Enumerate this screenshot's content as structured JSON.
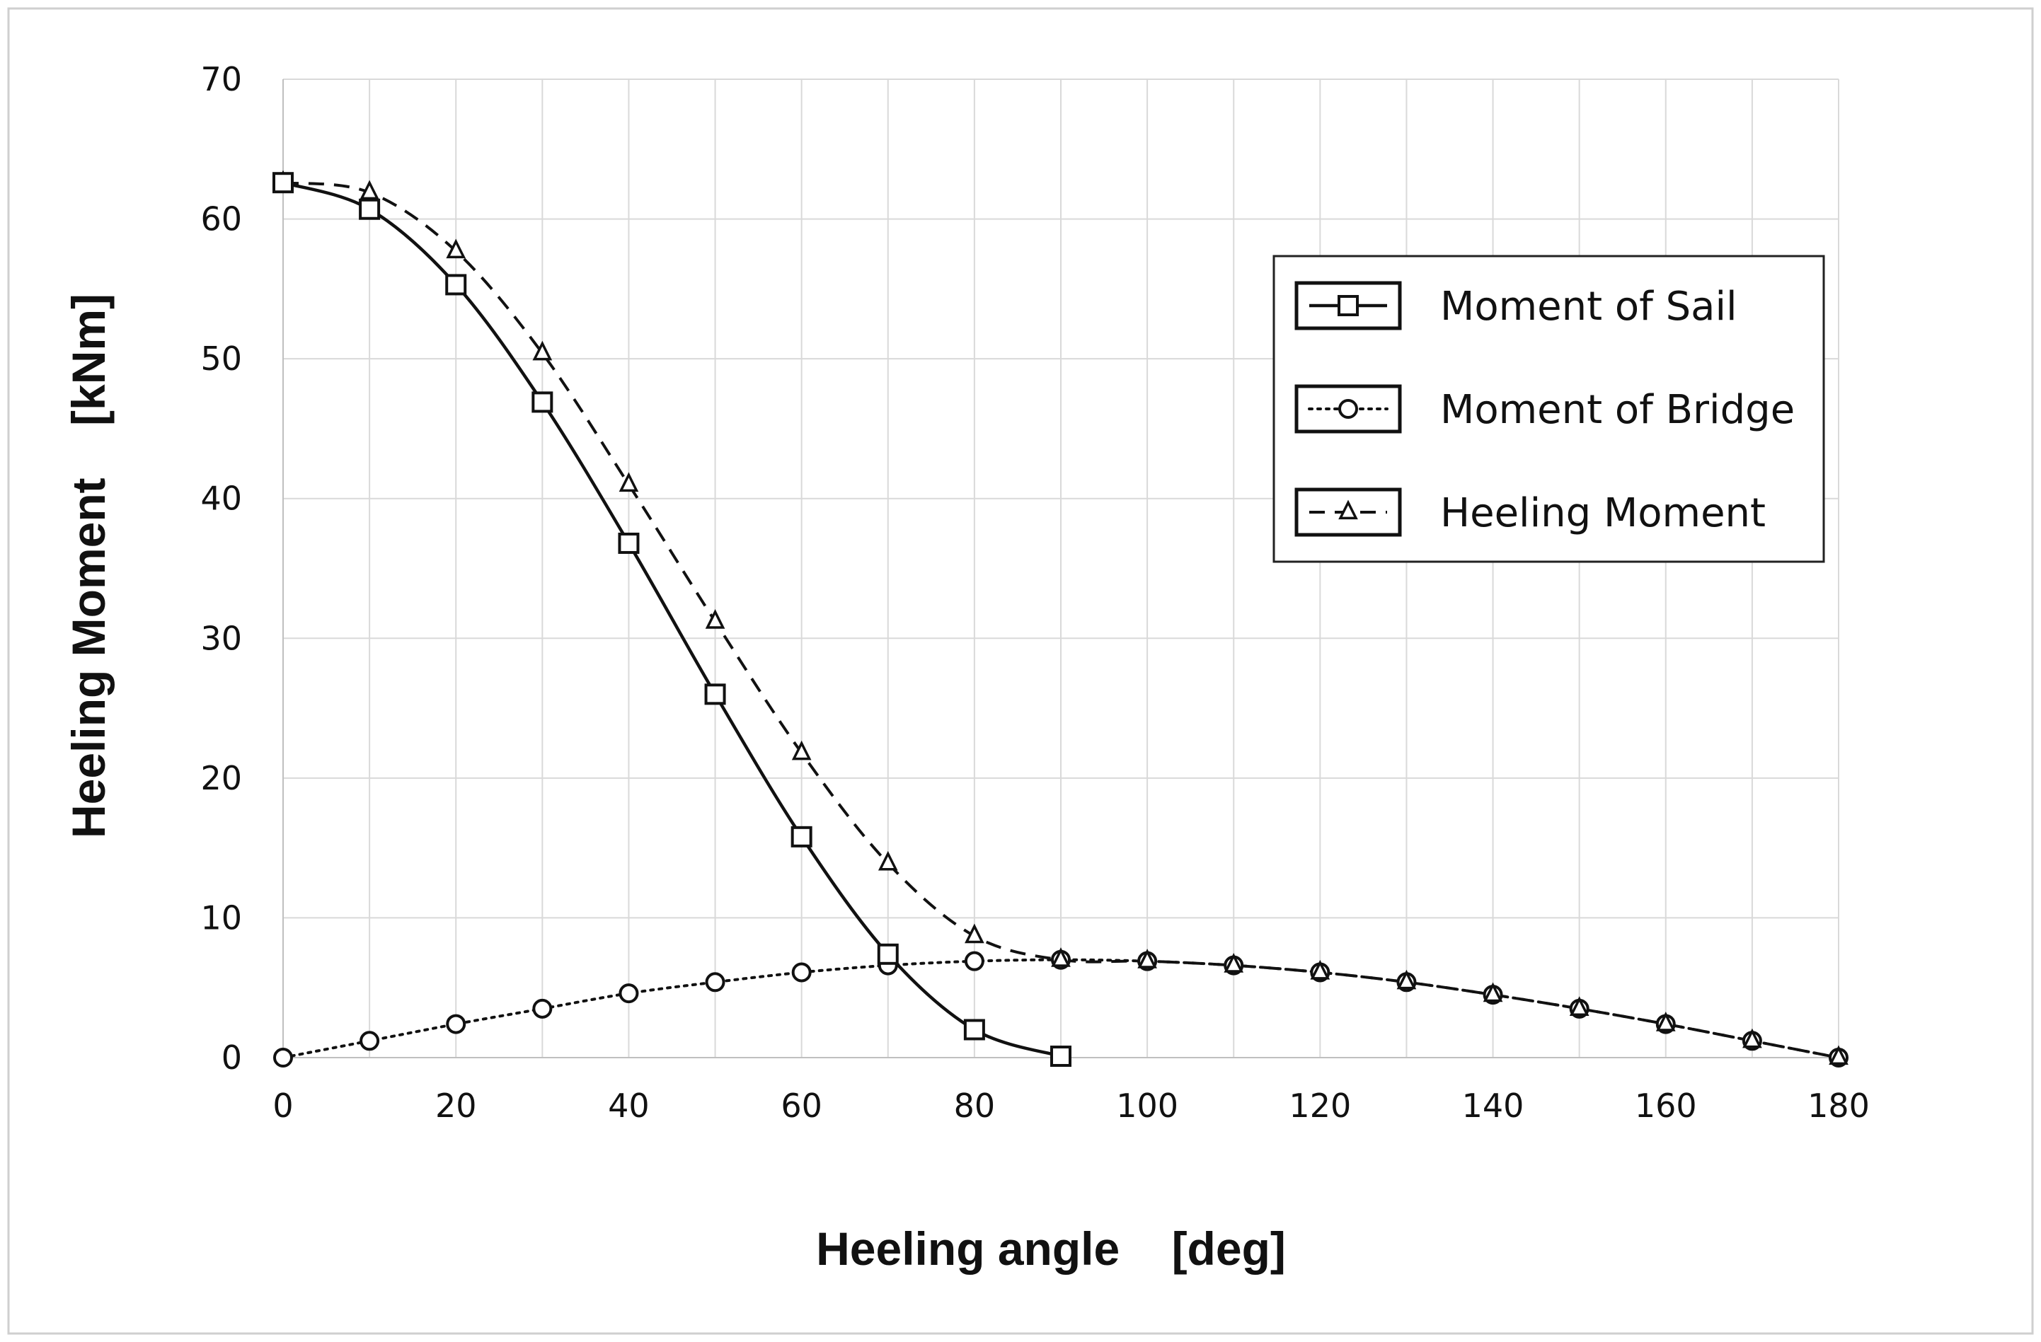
{
  "chart_data": {
    "type": "line",
    "title": "",
    "xlabel": "Heeling angle    [deg]",
    "ylabel": "Heeling Moment    [kNm]",
    "xlim": [
      0,
      180
    ],
    "ylim": [
      0,
      70
    ],
    "xticks": [
      0,
      20,
      40,
      60,
      80,
      100,
      120,
      140,
      160,
      180
    ],
    "yticks": [
      0,
      10,
      20,
      30,
      40,
      50,
      60,
      70
    ],
    "grid": true,
    "legend_position": "top-right",
    "series": [
      {
        "name": "Moment of Sail",
        "marker": "square",
        "line_style": "solid",
        "x": [
          0,
          10,
          20,
          30,
          40,
          50,
          60,
          70,
          80,
          90
        ],
        "y": [
          62.6,
          60.7,
          55.3,
          46.9,
          36.8,
          26.0,
          15.8,
          7.4,
          2.0,
          0.1
        ]
      },
      {
        "name": "Moment of Bridge",
        "marker": "circle",
        "line_style": "dotted",
        "x": [
          0,
          10,
          20,
          30,
          40,
          50,
          60,
          70,
          80,
          90,
          100,
          110,
          120,
          130,
          140,
          150,
          160,
          170,
          180
        ],
        "y": [
          0.0,
          1.2,
          2.4,
          3.5,
          4.6,
          5.4,
          6.1,
          6.6,
          6.9,
          7.0,
          6.9,
          6.6,
          6.1,
          5.4,
          4.5,
          3.5,
          2.4,
          1.2,
          0.0
        ]
      },
      {
        "name": "Heeling Moment",
        "marker": "triangle",
        "line_style": "dashed",
        "x": [
          0,
          10,
          20,
          30,
          40,
          50,
          60,
          70,
          80,
          90,
          100,
          110,
          120,
          130,
          140,
          150,
          160,
          170,
          180
        ],
        "y": [
          62.6,
          61.9,
          57.7,
          50.4,
          41.0,
          31.2,
          21.8,
          13.9,
          8.7,
          7.0,
          6.9,
          6.6,
          6.1,
          5.4,
          4.5,
          3.5,
          2.4,
          1.2,
          0.0
        ]
      }
    ]
  }
}
